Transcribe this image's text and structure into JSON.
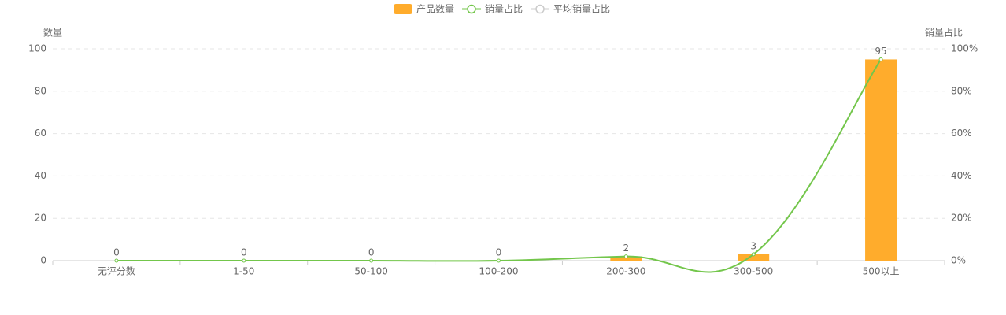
{
  "chart_data": {
    "type": "bar-line",
    "categories": [
      "无评分数",
      "1-50",
      "50-100",
      "100-200",
      "200-300",
      "300-500",
      "500以上"
    ],
    "series": [
      {
        "name": "产品数量",
        "type": "bar",
        "color": "#ffac2c",
        "values": [
          0,
          0,
          0,
          0,
          2,
          3,
          95
        ]
      },
      {
        "name": "销量占比",
        "type": "line",
        "axis": "y2",
        "color": "#73c64b",
        "values": [
          0,
          0,
          0,
          0,
          2,
          3,
          95
        ]
      },
      {
        "name": "平均销量占比",
        "type": "line",
        "axis": "y2",
        "color": "#cccccc",
        "hidden": true
      }
    ],
    "y_label": "数量",
    "y2_label": "销量占比",
    "ylim": [
      0,
      100
    ],
    "yticks": [
      0,
      20,
      40,
      60,
      80,
      100
    ],
    "y2lim": [
      0,
      100
    ],
    "y2ticks": [
      {
        "value": 0,
        "label": "0%"
      },
      {
        "value": 20,
        "label": "20%"
      },
      {
        "value": 40,
        "label": "40%"
      },
      {
        "value": 60,
        "label": "60%"
      },
      {
        "value": 80,
        "label": "80%"
      },
      {
        "value": 100,
        "label": "100%"
      }
    ],
    "grid": true,
    "legend": "top"
  }
}
